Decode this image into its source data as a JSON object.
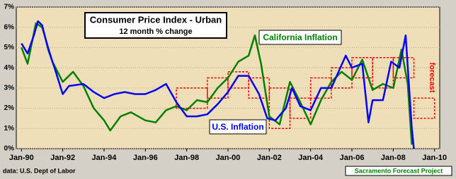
{
  "chart_data": {
    "type": "line",
    "title": "Consumer Price Index - Urban",
    "subtitle": "12 month % change",
    "source": "data: U.S. Dept of Labor",
    "credit": "Sacramento Forecast Project",
    "xlim": [
      1989.75,
      2010.25
    ],
    "ylim": [
      0,
      7
    ],
    "xticks": [
      {
        "value": 1990,
        "label": "Jan-90"
      },
      {
        "value": 1992,
        "label": "Jan-92"
      },
      {
        "value": 1994,
        "label": "Jan-94"
      },
      {
        "value": 1996,
        "label": "Jan-96"
      },
      {
        "value": 1998,
        "label": "Jan-98"
      },
      {
        "value": 2000,
        "label": "Jan-00"
      },
      {
        "value": 2002,
        "label": "Jan-02"
      },
      {
        "value": 2004,
        "label": "Jan-04"
      },
      {
        "value": 2006,
        "label": "Jan-06"
      },
      {
        "value": 2008,
        "label": "Jan-08"
      },
      {
        "value": 2010,
        "label": "Jan-10"
      }
    ],
    "yticks": [
      {
        "value": 0,
        "label": "0%"
      },
      {
        "value": 1,
        "label": "1%"
      },
      {
        "value": 2,
        "label": "2%"
      },
      {
        "value": 3,
        "label": "3%"
      },
      {
        "value": 4,
        "label": "4%"
      },
      {
        "value": 5,
        "label": "5%"
      },
      {
        "value": 6,
        "label": "6%"
      },
      {
        "value": 7,
        "label": "7%"
      }
    ],
    "grid": true,
    "series": [
      {
        "name": "U.S. Inflation",
        "color": "#0000ff",
        "x": [
          1990.0,
          1990.3,
          1990.6,
          1990.8,
          1991.0,
          1991.3,
          1991.6,
          1992.0,
          1992.3,
          1993.0,
          1993.5,
          1994.0,
          1994.5,
          1995.0,
          1995.5,
          1996.0,
          1996.5,
          1997.0,
          1997.5,
          1998.0,
          1998.5,
          1999.0,
          1999.5,
          2000.0,
          2000.5,
          2001.0,
          2001.5,
          2001.9,
          2002.3,
          2002.8,
          2003.1,
          2003.5,
          2004.0,
          2004.5,
          2005.0,
          2005.7,
          2006.0,
          2006.5,
          2006.8,
          2007.0,
          2007.5,
          2007.9,
          2008.3,
          2008.6,
          2008.9,
          2009.0
        ],
        "values": [
          5.2,
          4.7,
          5.6,
          6.3,
          6.1,
          4.9,
          4.0,
          2.7,
          3.1,
          3.2,
          2.8,
          2.5,
          2.7,
          2.8,
          2.7,
          2.7,
          2.9,
          3.2,
          2.3,
          1.6,
          1.6,
          1.7,
          2.2,
          2.8,
          3.6,
          3.6,
          2.7,
          1.5,
          1.4,
          2.0,
          3.0,
          2.1,
          1.9,
          3.0,
          3.0,
          4.6,
          4.0,
          4.2,
          1.3,
          2.4,
          2.4,
          4.3,
          4.0,
          5.6,
          1.0,
          0.0
        ]
      },
      {
        "name": "California Inflation",
        "color": "#008000",
        "x": [
          1990.0,
          1990.3,
          1990.7,
          1991.0,
          1991.5,
          1992.0,
          1992.5,
          1993.0,
          1993.5,
          1994.0,
          1994.3,
          1994.8,
          1995.3,
          1996.0,
          1996.5,
          1997.0,
          1997.5,
          1998.0,
          1998.5,
          1999.0,
          1999.5,
          2000.0,
          2000.5,
          2001.0,
          2001.3,
          2001.6,
          2002.0,
          2002.5,
          2003.0,
          2003.5,
          2004.0,
          2004.5,
          2005.0,
          2005.5,
          2006.0,
          2006.5,
          2007.0,
          2007.5,
          2008.0,
          2008.4,
          2008.7,
          2008.9
        ],
        "values": [
          5.0,
          4.2,
          6.2,
          6.0,
          4.3,
          3.3,
          3.8,
          3.1,
          2.0,
          1.4,
          0.9,
          1.6,
          1.8,
          1.4,
          1.3,
          1.9,
          2.1,
          1.9,
          2.4,
          2.3,
          3.0,
          3.5,
          4.3,
          4.6,
          5.6,
          4.2,
          1.6,
          1.2,
          3.3,
          2.3,
          1.2,
          2.4,
          3.3,
          3.8,
          3.4,
          4.4,
          2.9,
          3.2,
          3.0,
          4.9,
          3.2,
          0.2
        ]
      }
    ],
    "forecast": {
      "name": "forecast",
      "color": "#ff0000",
      "boxes": [
        {
          "x": [
            1997.5,
            1999.0
          ],
          "low": 2.0,
          "high": 3.0
        },
        {
          "x": [
            1999.0,
            2000.0
          ],
          "low": 2.5,
          "high": 3.5
        },
        {
          "x": [
            2000.0,
            2001.0
          ],
          "low": 3.0,
          "high": 3.8
        },
        {
          "x": [
            2001.0,
            2002.0
          ],
          "low": 2.5,
          "high": 3.5
        },
        {
          "x": [
            2002.0,
            2003.0
          ],
          "low": 1.0,
          "high": 3.0
        },
        {
          "x": [
            2003.0,
            2004.0
          ],
          "low": 1.5,
          "high": 2.5
        },
        {
          "x": [
            2004.0,
            2005.0
          ],
          "low": 2.5,
          "high": 3.5
        },
        {
          "x": [
            2005.0,
            2006.0
          ],
          "low": 3.0,
          "high": 4.0
        },
        {
          "x": [
            2006.0,
            2007.0
          ],
          "low": 3.5,
          "high": 4.5
        },
        {
          "x": [
            2007.0,
            2008.0
          ],
          "low": 3.0,
          "high": 4.5
        },
        {
          "x": [
            2008.0,
            2009.0
          ],
          "low": 3.5,
          "high": 4.5
        },
        {
          "x": [
            2009.0,
            2010.0
          ],
          "low": 1.5,
          "high": 2.5
        }
      ]
    }
  }
}
